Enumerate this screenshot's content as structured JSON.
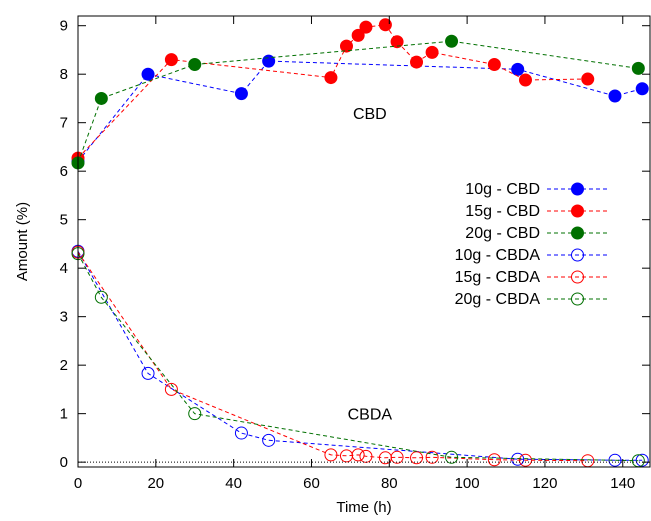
{
  "chart_data": {
    "type": "scatter",
    "title": "",
    "xlabel": "Time (h)",
    "ylabel": "Amount (%)",
    "xlim": [
      0,
      147
    ],
    "ylim": [
      -0.1,
      9.2
    ],
    "xticks": [
      0,
      20,
      40,
      60,
      80,
      100,
      120,
      140
    ],
    "yticks": [
      0,
      1,
      2,
      3,
      4,
      5,
      6,
      7,
      8,
      9
    ],
    "grid": false,
    "legend_position": "right-middle",
    "reference_line": {
      "y": 0,
      "style": "dotted"
    },
    "annotations": [
      {
        "text": "CBD",
        "x": 75,
        "y": 7.2
      },
      {
        "text": "CBDA",
        "x": 75,
        "y": 1.0
      }
    ],
    "series": [
      {
        "name": "10g - CBD",
        "color": "#0000ff",
        "marker": "filled-circle",
        "line": "dashed",
        "x": [
          0,
          18,
          42,
          49,
          113,
          138,
          145
        ],
        "y": [
          6.2,
          8.0,
          7.6,
          8.27,
          8.1,
          7.55,
          7.7
        ]
      },
      {
        "name": "15g - CBD",
        "color": "#ff0000",
        "marker": "filled-circle",
        "line": "dashed",
        "x": [
          0,
          24,
          65,
          69,
          72,
          74,
          79,
          82,
          87,
          91,
          107,
          115,
          131
        ],
        "y": [
          6.27,
          8.3,
          7.93,
          8.58,
          8.8,
          8.97,
          9.02,
          8.67,
          8.25,
          8.45,
          8.2,
          7.88,
          7.9
        ]
      },
      {
        "name": "20g - CBD",
        "color": "#007000",
        "marker": "filled-circle",
        "line": "dashed",
        "x": [
          0,
          6,
          30,
          96,
          144
        ],
        "y": [
          6.17,
          7.5,
          8.2,
          8.68,
          8.12
        ]
      },
      {
        "name": "10g - CBDA",
        "color": "#0000ff",
        "marker": "open-circle",
        "line": "dashed",
        "x": [
          0,
          18,
          42,
          49,
          113,
          138,
          145
        ],
        "y": [
          4.35,
          1.83,
          0.6,
          0.45,
          0.06,
          0.04,
          0.04
        ]
      },
      {
        "name": "15g - CBDA",
        "color": "#ff0000",
        "marker": "open-circle",
        "line": "dashed",
        "x": [
          0,
          24,
          65,
          69,
          72,
          74,
          79,
          82,
          87,
          91,
          107,
          115,
          131
        ],
        "y": [
          4.33,
          1.5,
          0.15,
          0.13,
          0.15,
          0.12,
          0.09,
          0.1,
          0.09,
          0.1,
          0.05,
          0.04,
          0.03
        ]
      },
      {
        "name": "20g - CBDA",
        "color": "#007000",
        "marker": "open-circle",
        "line": "dashed",
        "x": [
          0,
          6,
          30,
          96,
          144
        ],
        "y": [
          4.3,
          3.4,
          1.0,
          0.1,
          0.03
        ]
      }
    ]
  }
}
